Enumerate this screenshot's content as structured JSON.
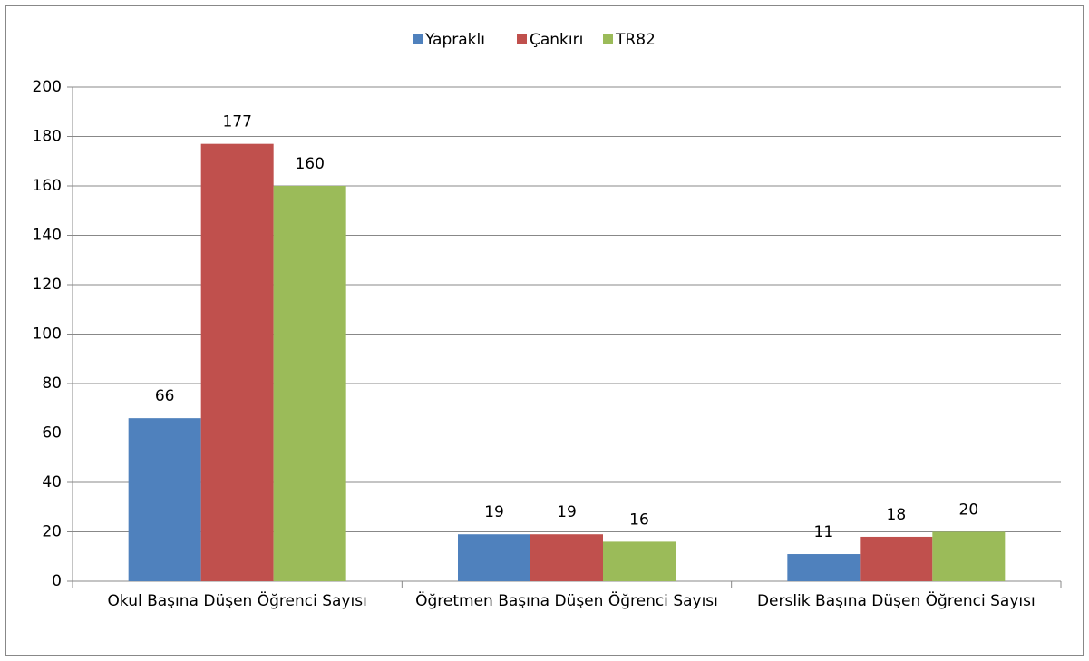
{
  "chart_data": {
    "type": "bar",
    "categories": [
      "Okul Başına Düşen Öğrenci Sayısı",
      "Öğretmen Başına Düşen Öğrenci Sayısı",
      "Derslik Başına Düşen Öğrenci Sayısı"
    ],
    "series": [
      {
        "name": "Yapraklı",
        "color": "#4f81bd",
        "values": [
          66,
          19,
          11
        ]
      },
      {
        "name": "Çankırı",
        "color": "#c0504d",
        "values": [
          177,
          19,
          18
        ]
      },
      {
        "name": "TR82",
        "color": "#9bbb59",
        "values": [
          160,
          16,
          20
        ]
      }
    ],
    "ylim": [
      0,
      200
    ],
    "yticks": [
      0,
      20,
      40,
      60,
      80,
      100,
      120,
      140,
      160,
      180,
      200
    ],
    "grid": true,
    "legend": "top",
    "data_labels": true
  }
}
